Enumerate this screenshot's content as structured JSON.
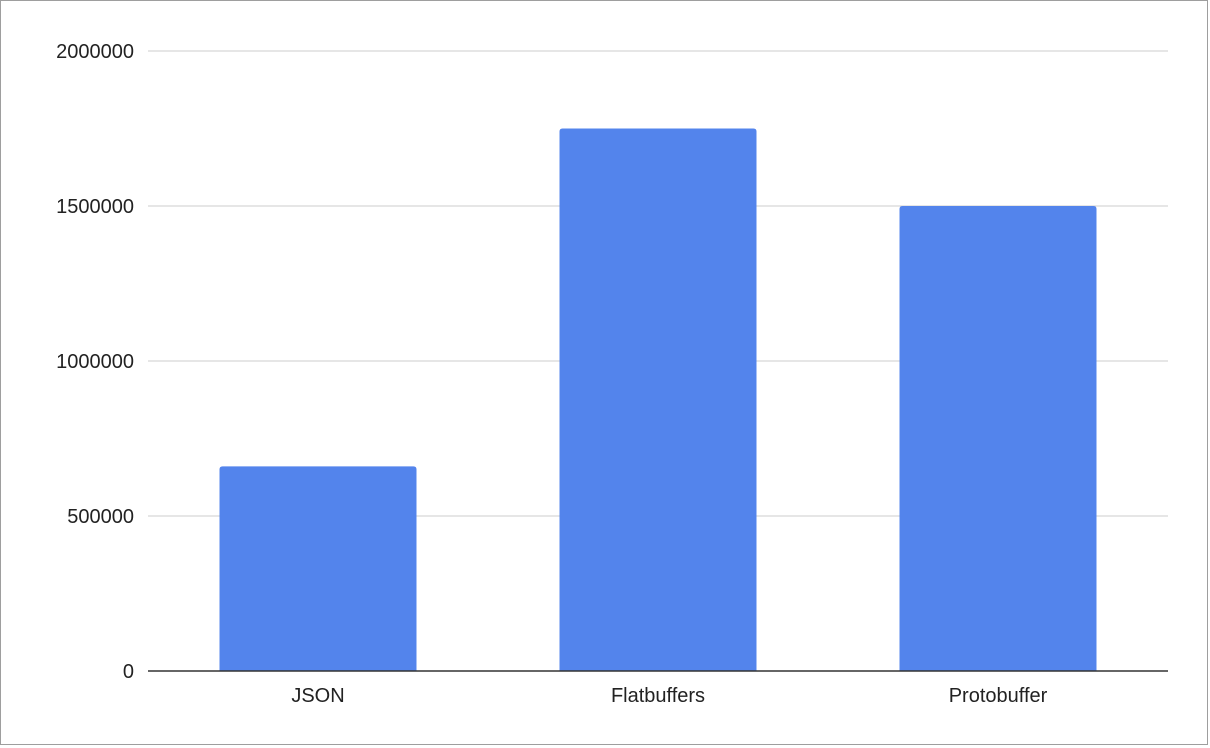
{
  "chart_data": {
    "type": "bar",
    "title": "",
    "xlabel": "",
    "ylabel": "",
    "categories": [
      "JSON",
      "Flatbuffers",
      "Protobuffer"
    ],
    "values": [
      660000,
      1750000,
      1500000
    ],
    "ylim": [
      0,
      2000000
    ],
    "yticks": [
      "0",
      "500000",
      "1000000",
      "1500000",
      "2000000"
    ],
    "grid": true,
    "legend": "none",
    "bar_color": "#5384ec",
    "grid_color": "#cccccc",
    "axis_color": "#333333"
  }
}
